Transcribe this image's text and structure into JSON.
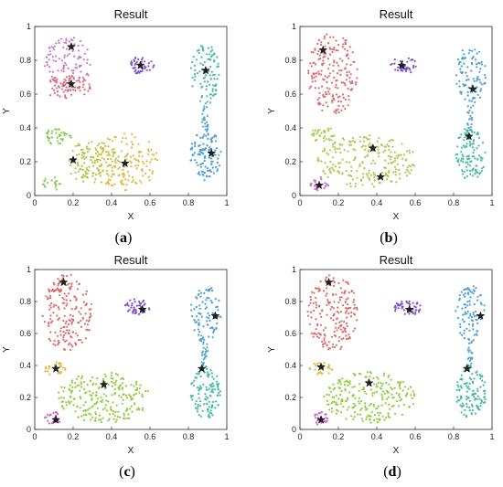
{
  "figure": {
    "panels": [
      {
        "caption_open": "(",
        "caption_letter": "a",
        "caption_close": ")"
      },
      {
        "caption_open": "(",
        "caption_letter": "b",
        "caption_close": ")"
      },
      {
        "caption_open": "(",
        "caption_letter": "c",
        "caption_close": ")"
      },
      {
        "caption_open": "(",
        "caption_letter": "d",
        "caption_close": ")"
      }
    ]
  },
  "chart_data": [
    {
      "type": "scatter",
      "title": "Result",
      "xlabel": "X",
      "ylabel": "Y",
      "xlim": [
        0,
        1
      ],
      "ylim": [
        0,
        1
      ],
      "xticks": [
        "0",
        "0.2",
        "0.4",
        "0.6",
        "0.8",
        "1"
      ],
      "yticks": [
        "0",
        "0.2",
        "0.4",
        "0.6",
        "0.8",
        "1"
      ],
      "grid": false,
      "clusters": [
        {
          "color": "#cc77cc",
          "n": 110,
          "shape": "blob",
          "cx": 0.17,
          "cy": 0.78,
          "rx": 0.12,
          "ry": 0.17
        },
        {
          "color": "#dd6a6a",
          "n": 70,
          "shape": "blob",
          "cx": 0.17,
          "cy": 0.64,
          "rx": 0.12,
          "ry": 0.07
        },
        {
          "color": "#7a55cc",
          "n": 45,
          "shape": "blob",
          "cx": 0.55,
          "cy": 0.77,
          "rx": 0.07,
          "ry": 0.05
        },
        {
          "color": "#44bba0",
          "n": 90,
          "shape": "blob",
          "cx": 0.89,
          "cy": 0.72,
          "rx": 0.08,
          "ry": 0.18
        },
        {
          "color": "#4a9fd6",
          "n": 110,
          "shape": "blob",
          "cx": 0.89,
          "cy": 0.24,
          "rx": 0.08,
          "ry": 0.15
        },
        {
          "color": "#50a8c8",
          "n": 25,
          "shape": "bridge",
          "x0": 0.89,
          "y0": 0.38,
          "x1": 0.88,
          "y1": 0.55
        },
        {
          "color": "#88cc55",
          "n": 40,
          "shape": "blob",
          "cx": 0.12,
          "cy": 0.35,
          "rx": 0.07,
          "ry": 0.05
        },
        {
          "color": "#88cc55",
          "n": 20,
          "shape": "blob",
          "cx": 0.09,
          "cy": 0.07,
          "rx": 0.05,
          "ry": 0.04
        },
        {
          "color": "#a8c840",
          "n": 110,
          "shape": "blob",
          "cx": 0.3,
          "cy": 0.2,
          "rx": 0.14,
          "ry": 0.13
        },
        {
          "color": "#e0b840",
          "n": 150,
          "shape": "blob",
          "cx": 0.48,
          "cy": 0.2,
          "rx": 0.17,
          "ry": 0.17
        }
      ],
      "centers": [
        {
          "x": 0.19,
          "y": 0.88
        },
        {
          "x": 0.19,
          "y": 0.66
        },
        {
          "x": 0.55,
          "y": 0.77
        },
        {
          "x": 0.89,
          "y": 0.74
        },
        {
          "x": 0.92,
          "y": 0.25
        },
        {
          "x": 0.2,
          "y": 0.21
        },
        {
          "x": 0.47,
          "y": 0.19
        }
      ]
    },
    {
      "type": "scatter",
      "title": "Result",
      "xlabel": "X",
      "ylabel": "Y",
      "xlim": [
        0,
        1
      ],
      "ylim": [
        0,
        1
      ],
      "xticks": [
        "0",
        "0.2",
        "0.4",
        "0.6",
        "0.8",
        "1"
      ],
      "yticks": [
        "0",
        "0.2",
        "0.4",
        "0.6",
        "0.8",
        "1"
      ],
      "grid": false,
      "clusters": [
        {
          "color": "#dd6a6a",
          "n": 190,
          "shape": "blob",
          "cx": 0.17,
          "cy": 0.72,
          "rx": 0.13,
          "ry": 0.24
        },
        {
          "color": "#7a55cc",
          "n": 45,
          "shape": "blob",
          "cx": 0.54,
          "cy": 0.77,
          "rx": 0.07,
          "ry": 0.05
        },
        {
          "color": "#4a9fd6",
          "n": 90,
          "shape": "blob",
          "cx": 0.89,
          "cy": 0.72,
          "rx": 0.08,
          "ry": 0.18
        },
        {
          "color": "#50a8c8",
          "n": 25,
          "shape": "bridge",
          "x0": 0.88,
          "y0": 0.38,
          "x1": 0.89,
          "y1": 0.55
        },
        {
          "color": "#44bba0",
          "n": 110,
          "shape": "blob",
          "cx": 0.89,
          "cy": 0.25,
          "rx": 0.08,
          "ry": 0.16
        },
        {
          "color": "#a8cc50",
          "n": 230,
          "shape": "blob",
          "cx": 0.35,
          "cy": 0.2,
          "rx": 0.26,
          "ry": 0.16
        },
        {
          "color": "#a8cc50",
          "n": 35,
          "shape": "blob",
          "cx": 0.12,
          "cy": 0.36,
          "rx": 0.06,
          "ry": 0.05
        },
        {
          "color": "#cc66cc",
          "n": 22,
          "shape": "blob",
          "cx": 0.1,
          "cy": 0.07,
          "rx": 0.05,
          "ry": 0.04
        }
      ],
      "centers": [
        {
          "x": 0.12,
          "y": 0.86
        },
        {
          "x": 0.53,
          "y": 0.77
        },
        {
          "x": 0.9,
          "y": 0.63
        },
        {
          "x": 0.88,
          "y": 0.35
        },
        {
          "x": 0.38,
          "y": 0.28
        },
        {
          "x": 0.42,
          "y": 0.11
        },
        {
          "x": 0.1,
          "y": 0.06
        }
      ]
    },
    {
      "type": "scatter",
      "title": "Result",
      "xlabel": "X",
      "ylabel": "Y",
      "xlim": [
        0,
        1
      ],
      "ylim": [
        0,
        1
      ],
      "xticks": [
        "0",
        "0.2",
        "0.4",
        "0.6",
        "0.8",
        "1"
      ],
      "yticks": [
        "0",
        "0.2",
        "0.4",
        "0.6",
        "0.8",
        "1"
      ],
      "grid": false,
      "clusters": [
        {
          "color": "#dd6a6a",
          "n": 190,
          "shape": "blob",
          "cx": 0.17,
          "cy": 0.73,
          "rx": 0.13,
          "ry": 0.24
        },
        {
          "color": "#7a55cc",
          "n": 45,
          "shape": "blob",
          "cx": 0.54,
          "cy": 0.77,
          "rx": 0.07,
          "ry": 0.05
        },
        {
          "color": "#4a9fd6",
          "n": 90,
          "shape": "blob",
          "cx": 0.89,
          "cy": 0.72,
          "rx": 0.08,
          "ry": 0.18
        },
        {
          "color": "#50a8c8",
          "n": 25,
          "shape": "bridge",
          "x0": 0.88,
          "y0": 0.38,
          "x1": 0.89,
          "y1": 0.55
        },
        {
          "color": "#44bba0",
          "n": 110,
          "shape": "blob",
          "cx": 0.89,
          "cy": 0.23,
          "rx": 0.08,
          "ry": 0.16
        },
        {
          "color": "#90cc40",
          "n": 230,
          "shape": "blob",
          "cx": 0.36,
          "cy": 0.2,
          "rx": 0.24,
          "ry": 0.16
        },
        {
          "color": "#e0b840",
          "n": 30,
          "shape": "blob",
          "cx": 0.11,
          "cy": 0.38,
          "rx": 0.06,
          "ry": 0.04
        },
        {
          "color": "#cc66cc",
          "n": 22,
          "shape": "blob",
          "cx": 0.1,
          "cy": 0.07,
          "rx": 0.05,
          "ry": 0.04
        }
      ],
      "centers": [
        {
          "x": 0.15,
          "y": 0.92
        },
        {
          "x": 0.56,
          "y": 0.75
        },
        {
          "x": 0.94,
          "y": 0.71
        },
        {
          "x": 0.87,
          "y": 0.38
        },
        {
          "x": 0.36,
          "y": 0.28
        },
        {
          "x": 0.11,
          "y": 0.38
        },
        {
          "x": 0.11,
          "y": 0.06
        }
      ]
    },
    {
      "type": "scatter",
      "title": "Result",
      "xlabel": "X",
      "ylabel": "Y",
      "xlim": [
        0,
        1
      ],
      "ylim": [
        0,
        1
      ],
      "xticks": [
        "0",
        "0.2",
        "0.4",
        "0.6",
        "0.8",
        "1"
      ],
      "yticks": [
        "0",
        "0.2",
        "0.4",
        "0.6",
        "0.8",
        "1"
      ],
      "grid": false,
      "clusters": [
        {
          "color": "#dd6a6a",
          "n": 190,
          "shape": "blob",
          "cx": 0.17,
          "cy": 0.73,
          "rx": 0.13,
          "ry": 0.24
        },
        {
          "color": "#7a55cc",
          "n": 45,
          "shape": "blob",
          "cx": 0.56,
          "cy": 0.76,
          "rx": 0.07,
          "ry": 0.05
        },
        {
          "color": "#4a9fd6",
          "n": 90,
          "shape": "blob",
          "cx": 0.89,
          "cy": 0.72,
          "rx": 0.08,
          "ry": 0.18
        },
        {
          "color": "#50a8c8",
          "n": 25,
          "shape": "bridge",
          "x0": 0.88,
          "y0": 0.38,
          "x1": 0.89,
          "y1": 0.55
        },
        {
          "color": "#44bba0",
          "n": 110,
          "shape": "blob",
          "cx": 0.89,
          "cy": 0.23,
          "rx": 0.08,
          "ry": 0.16
        },
        {
          "color": "#90cc40",
          "n": 230,
          "shape": "blob",
          "cx": 0.36,
          "cy": 0.2,
          "rx": 0.24,
          "ry": 0.16
        },
        {
          "color": "#e0b840",
          "n": 30,
          "shape": "blob",
          "cx": 0.11,
          "cy": 0.38,
          "rx": 0.06,
          "ry": 0.04
        },
        {
          "color": "#cc66cc",
          "n": 22,
          "shape": "blob",
          "cx": 0.1,
          "cy": 0.07,
          "rx": 0.05,
          "ry": 0.04
        }
      ],
      "centers": [
        {
          "x": 0.15,
          "y": 0.92
        },
        {
          "x": 0.57,
          "y": 0.75
        },
        {
          "x": 0.94,
          "y": 0.71
        },
        {
          "x": 0.87,
          "y": 0.38
        },
        {
          "x": 0.36,
          "y": 0.29
        },
        {
          "x": 0.11,
          "y": 0.39
        },
        {
          "x": 0.11,
          "y": 0.06
        }
      ]
    }
  ]
}
